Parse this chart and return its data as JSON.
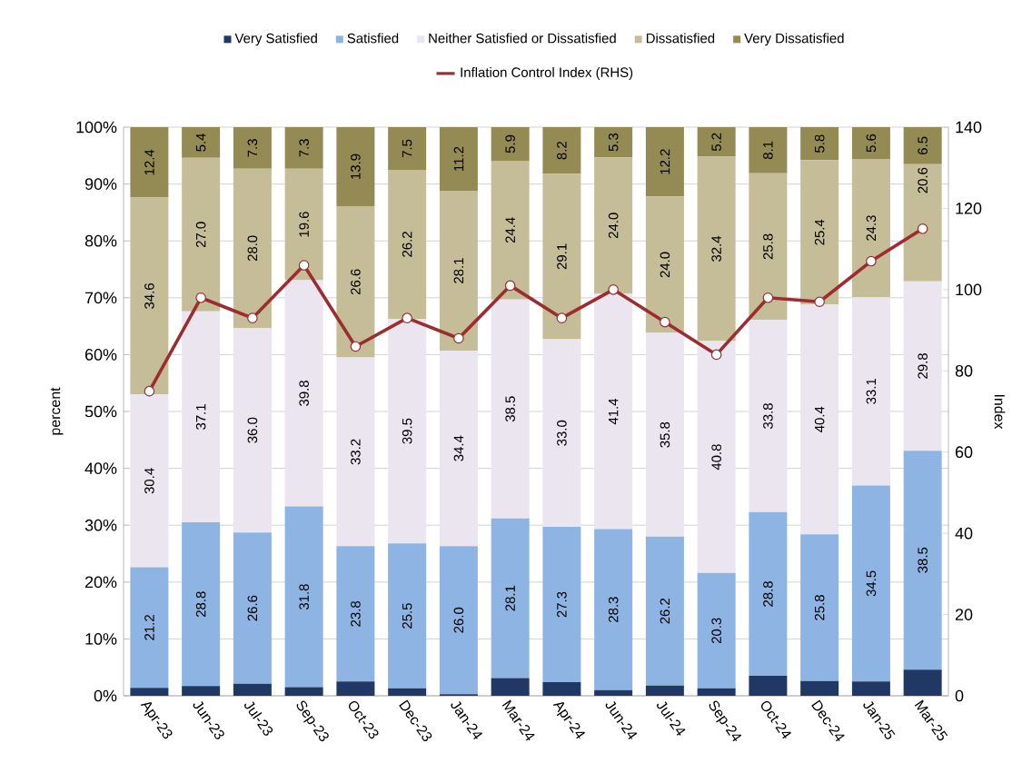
{
  "chart_data": {
    "type": "bar",
    "stacked": true,
    "ylabel": "percent",
    "y2label": "Index",
    "categories": [
      "Apr-23",
      "Jun-23",
      "Jul-23",
      "Sep-23",
      "Oct-23",
      "Dec-23",
      "Jan-24",
      "Mar-24",
      "Apr-24",
      "Jun-24",
      "Jul-24",
      "Sep-24",
      "Oct-24",
      "Dec-24",
      "Jan-25",
      "Mar-25"
    ],
    "series": [
      {
        "name": "Very Satisfied",
        "color": "#1f3864",
        "values": [
          1.4,
          1.7,
          2.1,
          1.5,
          2.5,
          1.3,
          0.3,
          3.1,
          2.4,
          1.0,
          1.8,
          1.3,
          3.5,
          2.6,
          2.5,
          4.6
        ]
      },
      {
        "name": "Satisfied",
        "color": "#8eb4e3",
        "values": [
          21.2,
          28.8,
          26.6,
          31.8,
          23.8,
          25.5,
          26.0,
          28.1,
          27.3,
          28.3,
          26.2,
          20.3,
          28.8,
          25.8,
          34.5,
          38.5
        ],
        "value_labels": [
          "21.2",
          "28.8",
          "26.6",
          "31.8",
          "23.8",
          "25.5",
          "26.0",
          "28.1",
          "27.3",
          "28.3",
          "26.2",
          "20.3",
          "28.8",
          "25.8",
          "34.5",
          "38.5"
        ]
      },
      {
        "name": "Neither Satisfied or Dissatisfied",
        "color": "#ebe5ef",
        "values": [
          30.4,
          37.1,
          36.0,
          39.8,
          33.2,
          39.5,
          34.4,
          38.5,
          33.0,
          41.4,
          35.8,
          40.8,
          33.8,
          40.4,
          33.1,
          29.8
        ],
        "value_labels": [
          "30.4",
          "37.1",
          "36.0",
          "39.8",
          "33.2",
          "39.5",
          "34.4",
          "38.5",
          "33.0",
          "41.4",
          "35.8",
          "40.8",
          "33.8",
          "40.4",
          "33.1",
          "29.8"
        ]
      },
      {
        "name": "Dissatisfied",
        "color": "#c4bd97",
        "values": [
          34.6,
          27.0,
          28.0,
          19.6,
          26.6,
          26.2,
          28.1,
          24.4,
          29.1,
          24.0,
          24.0,
          32.4,
          25.8,
          25.4,
          24.3,
          20.6
        ],
        "value_labels": [
          "34.6",
          "27.0",
          "28.0",
          "19.6",
          "26.6",
          "26.2",
          "28.1",
          "24.4",
          "29.1",
          "24.0",
          "24.0",
          "32.4",
          "25.8",
          "25.4",
          "24.3",
          "20.6"
        ]
      },
      {
        "name": "Very Dissatisfied",
        "color": "#948a54",
        "values": [
          12.4,
          5.4,
          7.3,
          7.3,
          13.9,
          7.5,
          11.2,
          5.9,
          8.2,
          5.3,
          12.2,
          5.2,
          8.1,
          5.8,
          5.6,
          6.5
        ],
        "value_labels": [
          "12.4",
          "5.4",
          "7.3",
          "7.3",
          "13.9",
          "7.5",
          "11.2",
          "5.9",
          "8.2",
          "5.3",
          "12.2",
          "5.2",
          "8.1",
          "5.8",
          "5.6",
          "6.5"
        ]
      },
      {
        "name": "Inflation Control Index (RHS)",
        "type": "line",
        "axis": "y2",
        "color": "#9b2d30",
        "values": [
          75,
          98,
          93,
          106,
          86,
          93,
          88,
          101,
          93,
          100,
          92,
          84,
          98,
          97,
          107,
          115
        ]
      }
    ],
    "ylim": [
      0,
      100
    ],
    "yticks": [
      {
        "value": 0,
        "label": "0%"
      },
      {
        "value": 10,
        "label": "10%"
      },
      {
        "value": 20,
        "label": "20%"
      },
      {
        "value": 30,
        "label": "30%"
      },
      {
        "value": 40,
        "label": "40%"
      },
      {
        "value": 50,
        "label": "50%"
      },
      {
        "value": 60,
        "label": "60%"
      },
      {
        "value": 70,
        "label": "70%"
      },
      {
        "value": 80,
        "label": "80%"
      },
      {
        "value": 90,
        "label": "90%"
      },
      {
        "value": 100,
        "label": "100%"
      }
    ],
    "y2lim": [
      0,
      140
    ],
    "y2ticks": [
      0,
      20,
      40,
      60,
      80,
      100,
      120,
      140
    ],
    "grid": "y",
    "legend": "top",
    "marker": "circle"
  }
}
